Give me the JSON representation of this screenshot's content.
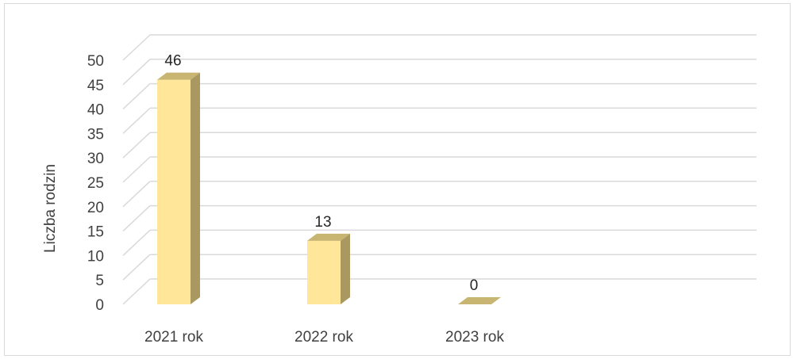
{
  "chart_data": {
    "type": "bar",
    "style": "3d-column",
    "title": "",
    "xlabel": "",
    "ylabel": "Liczba rodzin",
    "categories": [
      "2021 rok",
      "2022 rok",
      "2023 rok"
    ],
    "values": [
      46,
      13,
      0
    ],
    "data_labels": [
      "46",
      "13",
      "0"
    ],
    "ylim": [
      0,
      50
    ],
    "ytick_step": 5,
    "grid": true,
    "legend": "none",
    "colors": {
      "bar_front": "#ffe699",
      "bar_side": "#a99961",
      "bar_top": "#c8b571",
      "gridline": "#d9d9d9"
    }
  }
}
